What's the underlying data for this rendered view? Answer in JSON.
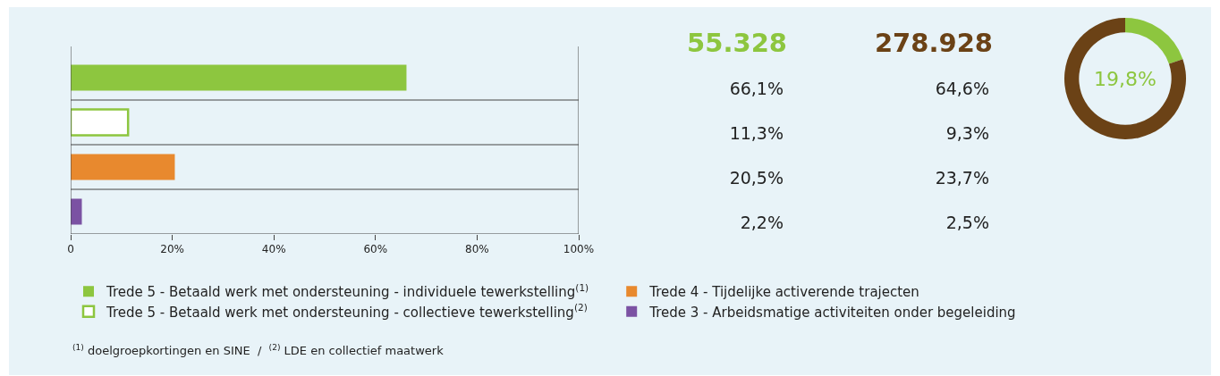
{
  "chart_data": [
    {
      "type": "bar",
      "orientation": "horizontal",
      "categories": [
        null,
        null,
        null,
        null
      ],
      "series": [
        {
          "name": "Trede 5 - Betaald werk met ondersteuning - individuele tewerkstelling$^{(1)}$",
          "color": "#8dc63f",
          "values": [
            66.1,
            null,
            null,
            null
          ]
        },
        {
          "name": "Trede 5 - Betaald werk met ondersteuning - collectieve tewerkstelling$^{(2)}$",
          "color": "#8dc63f",
          "values": [
            null,
            11.3,
            null,
            null
          ]
        },
        {
          "name": "Trede 4 - Tijdelijke activerende trajecten",
          "color": "#e8892e",
          "values": [
            null,
            null,
            20.5,
            null
          ]
        },
        {
          "name": "Trede 3 - Arbeidsmatige activiteiten onder begeleiding",
          "color": "#7b52a3",
          "values": [
            null,
            null,
            null,
            2.2
          ]
        }
      ],
      "xlim": [
        0,
        100
      ],
      "xticks": [
        0,
        {
          "value": 20,
          "label": "20%"
        },
        {
          "value": 40,
          "label": "40%"
        },
        {
          "value": 60,
          "label": "60%"
        },
        {
          "value": 80,
          "label": "80%"
        },
        {
          "value": 100,
          "label": "100%"
        }
      ],
      "tick_labels": "x",
      "grid": false,
      "legend": "bottom",
      "annotations": [
        "$^{(1)}$ doelgroepkortingen en SINE  /  $^{(2)}$ LDE en collectief maatwerk"
      ]
    },
    {
      "type": "other",
      "title": "55.328",
      "color": "#8dc63f",
      "annotations": [
        "66,1%",
        "11,3%",
        "20,5%",
        "2,2%"
      ]
    },
    {
      "type": "other",
      "title": "278.928",
      "color": "#6b4216",
      "annotations": [
        "64,6%",
        "9,3%",
        "23,7%",
        "2,5%"
      ]
    },
    {
      "type": "donut",
      "categories": [
        null,
        null
      ],
      "values": [
        19.8,
        80.2
      ],
      "colors": [
        "#8dc63f",
        "#6b4216"
      ],
      "annotations": [
        "19,8%"
      ]
    }
  ]
}
